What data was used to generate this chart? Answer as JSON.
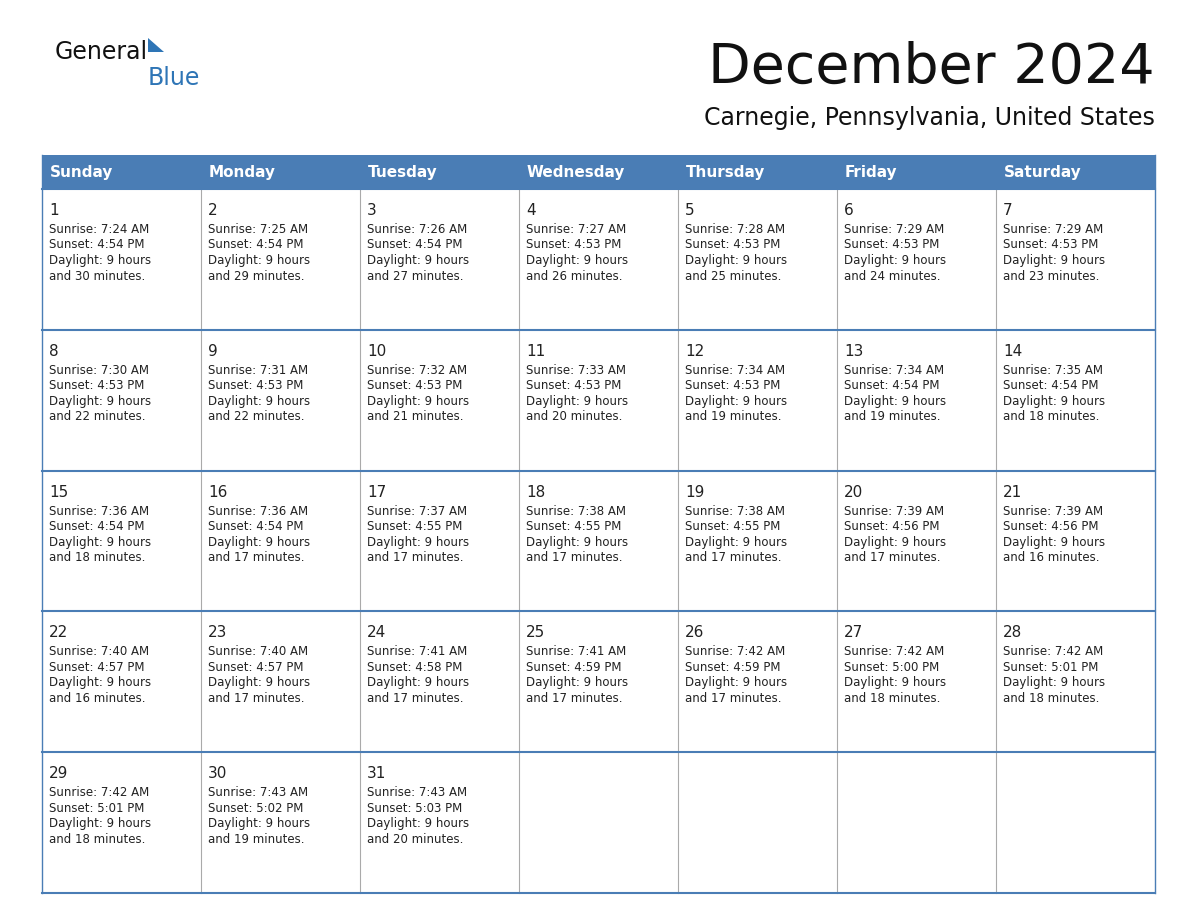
{
  "title": "December 2024",
  "subtitle": "Carnegie, Pennsylvania, United States",
  "days_of_week": [
    "Sunday",
    "Monday",
    "Tuesday",
    "Wednesday",
    "Thursday",
    "Friday",
    "Saturday"
  ],
  "header_bg": "#4A7DB5",
  "header_text_color": "#FFFFFF",
  "cell_bg": "#FFFFFF",
  "border_color": "#4A7DB5",
  "divider_color": "#AAAAAA",
  "text_color": "#222222",
  "title_color": "#111111",
  "subtitle_color": "#111111",
  "logo_general_color": "#111111",
  "logo_blue_color": "#2E75B6",
  "weeks": [
    [
      {
        "day": 1,
        "sunrise": "7:24 AM",
        "sunset": "4:54 PM",
        "daylight": "9 hours",
        "daylight2": "and 30 minutes."
      },
      {
        "day": 2,
        "sunrise": "7:25 AM",
        "sunset": "4:54 PM",
        "daylight": "9 hours",
        "daylight2": "and 29 minutes."
      },
      {
        "day": 3,
        "sunrise": "7:26 AM",
        "sunset": "4:54 PM",
        "daylight": "9 hours",
        "daylight2": "and 27 minutes."
      },
      {
        "day": 4,
        "sunrise": "7:27 AM",
        "sunset": "4:53 PM",
        "daylight": "9 hours",
        "daylight2": "and 26 minutes."
      },
      {
        "day": 5,
        "sunrise": "7:28 AM",
        "sunset": "4:53 PM",
        "daylight": "9 hours",
        "daylight2": "and 25 minutes."
      },
      {
        "day": 6,
        "sunrise": "7:29 AM",
        "sunset": "4:53 PM",
        "daylight": "9 hours",
        "daylight2": "and 24 minutes."
      },
      {
        "day": 7,
        "sunrise": "7:29 AM",
        "sunset": "4:53 PM",
        "daylight": "9 hours",
        "daylight2": "and 23 minutes."
      }
    ],
    [
      {
        "day": 8,
        "sunrise": "7:30 AM",
        "sunset": "4:53 PM",
        "daylight": "9 hours",
        "daylight2": "and 22 minutes."
      },
      {
        "day": 9,
        "sunrise": "7:31 AM",
        "sunset": "4:53 PM",
        "daylight": "9 hours",
        "daylight2": "and 22 minutes."
      },
      {
        "day": 10,
        "sunrise": "7:32 AM",
        "sunset": "4:53 PM",
        "daylight": "9 hours",
        "daylight2": "and 21 minutes."
      },
      {
        "day": 11,
        "sunrise": "7:33 AM",
        "sunset": "4:53 PM",
        "daylight": "9 hours",
        "daylight2": "and 20 minutes."
      },
      {
        "day": 12,
        "sunrise": "7:34 AM",
        "sunset": "4:53 PM",
        "daylight": "9 hours",
        "daylight2": "and 19 minutes."
      },
      {
        "day": 13,
        "sunrise": "7:34 AM",
        "sunset": "4:54 PM",
        "daylight": "9 hours",
        "daylight2": "and 19 minutes."
      },
      {
        "day": 14,
        "sunrise": "7:35 AM",
        "sunset": "4:54 PM",
        "daylight": "9 hours",
        "daylight2": "and 18 minutes."
      }
    ],
    [
      {
        "day": 15,
        "sunrise": "7:36 AM",
        "sunset": "4:54 PM",
        "daylight": "9 hours",
        "daylight2": "and 18 minutes."
      },
      {
        "day": 16,
        "sunrise": "7:36 AM",
        "sunset": "4:54 PM",
        "daylight": "9 hours",
        "daylight2": "and 17 minutes."
      },
      {
        "day": 17,
        "sunrise": "7:37 AM",
        "sunset": "4:55 PM",
        "daylight": "9 hours",
        "daylight2": "and 17 minutes."
      },
      {
        "day": 18,
        "sunrise": "7:38 AM",
        "sunset": "4:55 PM",
        "daylight": "9 hours",
        "daylight2": "and 17 minutes."
      },
      {
        "day": 19,
        "sunrise": "7:38 AM",
        "sunset": "4:55 PM",
        "daylight": "9 hours",
        "daylight2": "and 17 minutes."
      },
      {
        "day": 20,
        "sunrise": "7:39 AM",
        "sunset": "4:56 PM",
        "daylight": "9 hours",
        "daylight2": "and 17 minutes."
      },
      {
        "day": 21,
        "sunrise": "7:39 AM",
        "sunset": "4:56 PM",
        "daylight": "9 hours",
        "daylight2": "and 16 minutes."
      }
    ],
    [
      {
        "day": 22,
        "sunrise": "7:40 AM",
        "sunset": "4:57 PM",
        "daylight": "9 hours",
        "daylight2": "and 16 minutes."
      },
      {
        "day": 23,
        "sunrise": "7:40 AM",
        "sunset": "4:57 PM",
        "daylight": "9 hours",
        "daylight2": "and 17 minutes."
      },
      {
        "day": 24,
        "sunrise": "7:41 AM",
        "sunset": "4:58 PM",
        "daylight": "9 hours",
        "daylight2": "and 17 minutes."
      },
      {
        "day": 25,
        "sunrise": "7:41 AM",
        "sunset": "4:59 PM",
        "daylight": "9 hours",
        "daylight2": "and 17 minutes."
      },
      {
        "day": 26,
        "sunrise": "7:42 AM",
        "sunset": "4:59 PM",
        "daylight": "9 hours",
        "daylight2": "and 17 minutes."
      },
      {
        "day": 27,
        "sunrise": "7:42 AM",
        "sunset": "5:00 PM",
        "daylight": "9 hours",
        "daylight2": "and 18 minutes."
      },
      {
        "day": 28,
        "sunrise": "7:42 AM",
        "sunset": "5:01 PM",
        "daylight": "9 hours",
        "daylight2": "and 18 minutes."
      }
    ],
    [
      {
        "day": 29,
        "sunrise": "7:42 AM",
        "sunset": "5:01 PM",
        "daylight": "9 hours",
        "daylight2": "and 18 minutes."
      },
      {
        "day": 30,
        "sunrise": "7:43 AM",
        "sunset": "5:02 PM",
        "daylight": "9 hours",
        "daylight2": "and 19 minutes."
      },
      {
        "day": 31,
        "sunrise": "7:43 AM",
        "sunset": "5:03 PM",
        "daylight": "9 hours",
        "daylight2": "and 20 minutes."
      },
      null,
      null,
      null,
      null
    ]
  ]
}
